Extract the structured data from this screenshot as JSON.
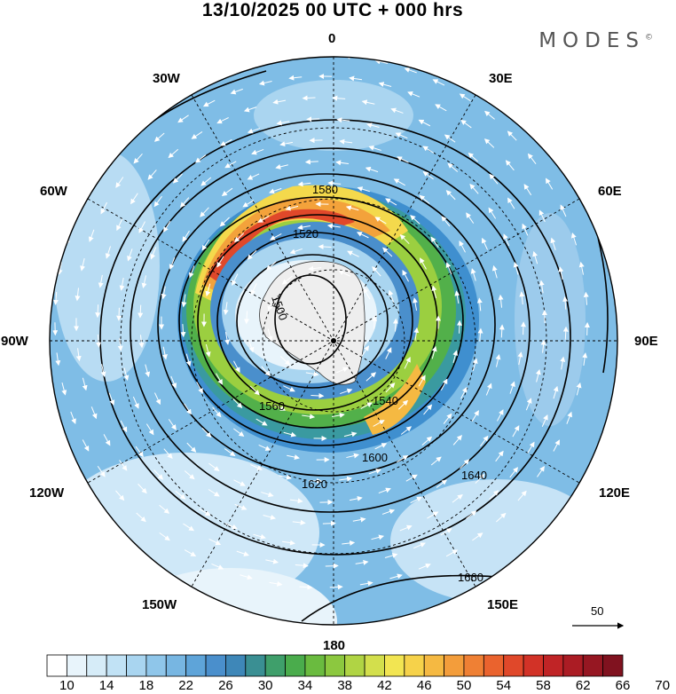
{
  "title": "13/10/2025  00 UTC  + 000 hrs",
  "brand": "MODES",
  "brand_mark": "©",
  "longitude_labels": {
    "top": "0",
    "top_right": "30E",
    "upper_right": "60E",
    "right": "90E",
    "lower_right": "120E",
    "bottom_right": "150E",
    "bottom": "180",
    "bottom_left": "150W",
    "lower_left": "120W",
    "left": "90W",
    "upper_left": "60W",
    "top_left": "30W"
  },
  "contours": {
    "values": [
      1500,
      1520,
      1540,
      1560,
      1580,
      1600,
      1620,
      1640,
      1660
    ],
    "labels": [
      "1500",
      "1520",
      "1540",
      "1560",
      "1580",
      "1600",
      "1620",
      "1640",
      "1660"
    ]
  },
  "wind_scale": {
    "label": "50"
  },
  "colorbar": {
    "ticks": [
      "10",
      "14",
      "18",
      "22",
      "26",
      "30",
      "34",
      "38",
      "42",
      "46",
      "50",
      "54",
      "58",
      "62",
      "66",
      "70"
    ],
    "colors": [
      "#ffffff",
      "#e8f4fb",
      "#d6ecf8",
      "#c1e2f5",
      "#a9d5f0",
      "#8fc6ea",
      "#77b6e2",
      "#5ea4d9",
      "#4a8fcc",
      "#3e87b8",
      "#3a8f93",
      "#3f9f6b",
      "#4aac4c",
      "#6abb3f",
      "#8cc83f",
      "#b0d444",
      "#d3df4c",
      "#f2e552",
      "#f6d24a",
      "#f5b942",
      "#f39d3b",
      "#ef8034",
      "#ea632e",
      "#e0482a",
      "#d23227",
      "#c02426",
      "#ab1c24",
      "#961722",
      "#80121f"
    ]
  }
}
